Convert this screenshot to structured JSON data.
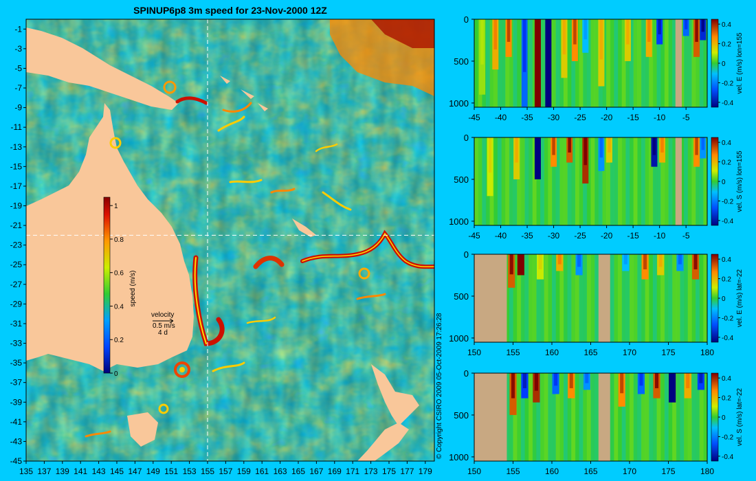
{
  "title": "SPINUP6p8 3m speed for 23-Nov-2000 12Z",
  "copyright": "© Copyright CSIRO 2009   05-Oct-2009 17:26:28",
  "colors": {
    "background": "#00ccff",
    "land": "#f9c79a",
    "section_land": "#c8a882",
    "ocean_low": "#1a66ff",
    "ocean_mid": "#33cc33",
    "ocean_high": "#cc0000",
    "crosshair": "#ffffff"
  },
  "map": {
    "x_ticks": [
      "135",
      "137",
      "139",
      "141",
      "143",
      "145",
      "147",
      "149",
      "151",
      "153",
      "155",
      "157",
      "159",
      "161",
      "163",
      "165",
      "167",
      "169",
      "171",
      "173",
      "175",
      "177",
      "179"
    ],
    "y_ticks": [
      "-1",
      "-3",
      "-5",
      "-7",
      "-9",
      "-11",
      "-13",
      "-15",
      "-17",
      "-19",
      "-21",
      "-23",
      "-25",
      "-27",
      "-29",
      "-31",
      "-33",
      "-35",
      "-37",
      "-39",
      "-41",
      "-43",
      "-45"
    ],
    "crosshair_lon": 155,
    "crosshair_lat": -22,
    "colorbar": {
      "label": "speed (m/s)",
      "ticks": [
        "1",
        "0.8",
        "0.6",
        "0.4",
        "0.2",
        "0"
      ]
    },
    "velocity_key": {
      "title": "velocity",
      "speed": "0.5 m/s",
      "period": "4 d"
    }
  },
  "chart_data": [
    {
      "type": "heatmap",
      "ylabel": "vel. E (m/s) lon=155",
      "x_ticks": [
        "-45",
        "-40",
        "-35",
        "-30",
        "-25",
        "-20",
        "-15",
        "-10",
        "-5"
      ],
      "y_ticks": [
        "0",
        "500",
        "1000"
      ],
      "xlim": [
        -45,
        -1
      ],
      "ylim": [
        1050,
        0
      ],
      "colorbar_ticks": [
        "0.4",
        "0.2",
        "0",
        "-0.2",
        "-0.4"
      ],
      "clim": [
        -0.45,
        0.45
      ],
      "bands": [
        {
          "x": -43.5,
          "v": 0.1,
          "d": 900
        },
        {
          "x": -41.0,
          "v": 0.25,
          "d": 600
        },
        {
          "x": -38.5,
          "v": 0.3,
          "d": 450
        },
        {
          "x": -35.5,
          "v": -0.25,
          "d": 1050
        },
        {
          "x": -33.0,
          "v": 0.45,
          "d": 1050
        },
        {
          "x": -31.0,
          "v": -0.45,
          "d": 1050
        },
        {
          "x": -28.0,
          "v": 0.2,
          "d": 700
        },
        {
          "x": -26.0,
          "v": 0.3,
          "d": 500
        },
        {
          "x": -24.0,
          "v": -0.15,
          "d": 400
        },
        {
          "x": -21.0,
          "v": 0.2,
          "d": 800
        },
        {
          "x": -16.0,
          "v": 0.2,
          "d": 500
        },
        {
          "x": -12.0,
          "v": 0.25,
          "d": 450
        },
        {
          "x": -10.0,
          "v": -0.3,
          "d": 300
        },
        {
          "x": -5.0,
          "v": -0.25,
          "d": 200
        },
        {
          "x": -3.0,
          "v": 0.35,
          "d": 450
        },
        {
          "x": -1.8,
          "v": -0.35,
          "d": 250
        }
      ],
      "land": [
        [
          -7.0,
          -5.8
        ]
      ]
    },
    {
      "type": "heatmap",
      "ylabel": "vel. S (m/s) lon=155",
      "x_ticks": [
        "-45",
        "-40",
        "-35",
        "-30",
        "-25",
        "-20",
        "-15",
        "-10",
        "-5"
      ],
      "y_ticks": [
        "0",
        "500",
        "1000"
      ],
      "xlim": [
        -45,
        -1
      ],
      "ylim": [
        1050,
        0
      ],
      "colorbar_ticks": [
        "0.4",
        "0.2",
        "0",
        "-0.2",
        "-0.4"
      ],
      "clim": [
        -0.45,
        0.45
      ],
      "bands": [
        {
          "x": -42.0,
          "v": 0.15,
          "d": 700
        },
        {
          "x": -37.0,
          "v": 0.2,
          "d": 500
        },
        {
          "x": -33.0,
          "v": -0.45,
          "d": 500
        },
        {
          "x": -30.0,
          "v": 0.3,
          "d": 350
        },
        {
          "x": -27.0,
          "v": 0.35,
          "d": 300
        },
        {
          "x": -24.0,
          "v": 0.4,
          "d": 550
        },
        {
          "x": -21.0,
          "v": -0.2,
          "d": 400
        },
        {
          "x": -19.5,
          "v": 0.2,
          "d": 300
        },
        {
          "x": -11.0,
          "v": -0.4,
          "d": 350
        },
        {
          "x": -9.5,
          "v": 0.25,
          "d": 300
        },
        {
          "x": -3.0,
          "v": 0.3,
          "d": 350
        },
        {
          "x": -1.8,
          "v": -0.2,
          "d": 250
        }
      ],
      "land": [
        [
          -7.0,
          -5.8
        ]
      ]
    },
    {
      "type": "heatmap",
      "ylabel": "vel. E (m/s) lat=-22",
      "x_ticks": [
        "150",
        "155",
        "160",
        "165",
        "170",
        "175",
        "180"
      ],
      "y_ticks": [
        "0",
        "500",
        "1000"
      ],
      "xlim": [
        150,
        180
      ],
      "ylim": [
        1050,
        0
      ],
      "colorbar_ticks": [
        "0.4",
        "0.2",
        "0",
        "-0.2",
        "-0.4"
      ],
      "clim": [
        -0.45,
        0.45
      ],
      "bands": [
        {
          "x": 154.8,
          "v": 0.35,
          "d": 400
        },
        {
          "x": 156.0,
          "v": 0.45,
          "d": 250
        },
        {
          "x": 158.5,
          "v": 0.15,
          "d": 300
        },
        {
          "x": 161.0,
          "v": 0.25,
          "d": 200
        },
        {
          "x": 163.5,
          "v": -0.2,
          "d": 250
        },
        {
          "x": 169.5,
          "v": -0.15,
          "d": 200
        },
        {
          "x": 172.0,
          "v": 0.3,
          "d": 300
        },
        {
          "x": 174.0,
          "v": 0.2,
          "d": 250
        },
        {
          "x": 176.5,
          "v": -0.2,
          "d": 200
        },
        {
          "x": 178.5,
          "v": 0.35,
          "d": 300
        }
      ],
      "land": [
        [
          150,
          154.2
        ],
        [
          166.0,
          167.5
        ]
      ]
    },
    {
      "type": "heatmap",
      "ylabel": "vel. S (m/s) lat=-22",
      "x_ticks": [
        "150",
        "155",
        "160",
        "165",
        "170",
        "175",
        "180"
      ],
      "y_ticks": [
        "0",
        "500",
        "1000"
      ],
      "xlim": [
        150,
        180
      ],
      "ylim": [
        1050,
        0
      ],
      "colorbar_ticks": [
        "0.4",
        "0.2",
        "0",
        "-0.2",
        "-0.4"
      ],
      "clim": [
        -0.45,
        0.45
      ],
      "bands": [
        {
          "x": 155.0,
          "v": 0.35,
          "d": 500
        },
        {
          "x": 156.5,
          "v": -0.3,
          "d": 300
        },
        {
          "x": 158.0,
          "v": 0.4,
          "d": 350
        },
        {
          "x": 160.5,
          "v": -0.25,
          "d": 250
        },
        {
          "x": 162.5,
          "v": 0.3,
          "d": 300
        },
        {
          "x": 164.5,
          "v": -0.2,
          "d": 200
        },
        {
          "x": 169.0,
          "v": 0.3,
          "d": 400
        },
        {
          "x": 171.5,
          "v": -0.25,
          "d": 250
        },
        {
          "x": 173.5,
          "v": 0.35,
          "d": 300
        },
        {
          "x": 175.5,
          "v": -0.45,
          "d": 350
        },
        {
          "x": 177.5,
          "v": 0.25,
          "d": 300
        },
        {
          "x": 179.2,
          "v": -0.3,
          "d": 200
        }
      ],
      "land": [
        [
          150,
          154.2
        ],
        [
          166.0,
          167.5
        ]
      ]
    }
  ]
}
